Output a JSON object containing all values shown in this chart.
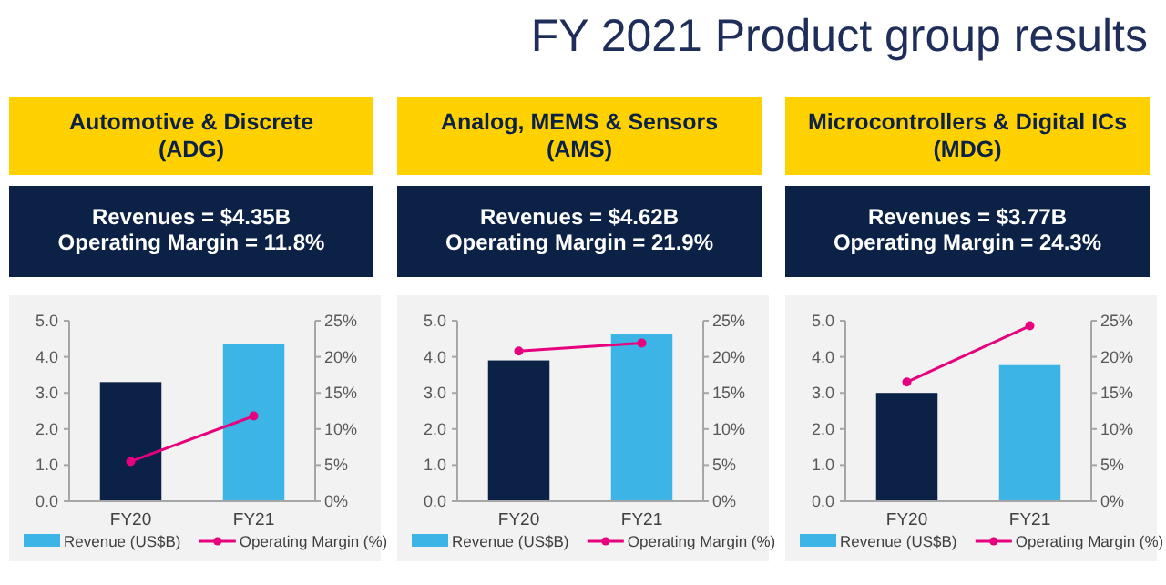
{
  "chart_data": [
    {
      "type": "other",
      "title": "FY 2021 Product group results"
    },
    {
      "type": "bar",
      "title": "Automotive & Discrete\n(ADG)",
      "subtitle": "Revenues = $4.35B\nOperating Margin = 11.8%",
      "categories": [
        "FY20",
        "FY21"
      ],
      "series": [
        {
          "name": "Revenue (US$B)",
          "type": "bar",
          "color": "#3cb4e5",
          "colors": [
            "#0b2146",
            "#3cb4e5"
          ],
          "values": [
            3.3,
            4.35
          ]
        },
        {
          "name": "Operating Margin (%)",
          "type": "line",
          "axis": "y2",
          "color": "#e6007e",
          "values": [
            5.5,
            11.8
          ]
        }
      ],
      "ylim": [
        0,
        5
      ],
      "yticks": [
        {
          "value": 0,
          "label": "0.0"
        },
        {
          "value": 1,
          "label": "1.0"
        },
        {
          "value": 2,
          "label": "2.0"
        },
        {
          "value": 3,
          "label": "3.0"
        },
        {
          "value": 4,
          "label": "4.0"
        },
        {
          "value": 5,
          "label": "5.0"
        }
      ],
      "y2lim": [
        0,
        25
      ],
      "y2ticks": [
        {
          "value": 0,
          "label": "0%"
        },
        {
          "value": 5,
          "label": "5%"
        },
        {
          "value": 10,
          "label": "10%"
        },
        {
          "value": 15,
          "label": "15%"
        },
        {
          "value": 20,
          "label": "20%"
        },
        {
          "value": 25,
          "label": "25%"
        }
      ],
      "legend": "bottom",
      "marker": "circle"
    },
    {
      "type": "bar",
      "title": "Analog, MEMS & Sensors\n(AMS)",
      "subtitle": "Revenues = $4.62B\nOperating Margin = 21.9%",
      "categories": [
        "FY20",
        "FY21"
      ],
      "series": [
        {
          "name": "Revenue (US$B)",
          "type": "bar",
          "color": "#3cb4e5",
          "colors": [
            "#0b2146",
            "#3cb4e5"
          ],
          "values": [
            3.9,
            4.62
          ]
        },
        {
          "name": "Operating Margin (%)",
          "type": "line",
          "axis": "y2",
          "color": "#e6007e",
          "values": [
            20.8,
            21.9
          ]
        }
      ],
      "ylim": [
        0,
        5
      ],
      "yticks": [
        {
          "value": 0,
          "label": "0.0"
        },
        {
          "value": 1,
          "label": "1.0"
        },
        {
          "value": 2,
          "label": "2.0"
        },
        {
          "value": 3,
          "label": "3.0"
        },
        {
          "value": 4,
          "label": "4.0"
        },
        {
          "value": 5,
          "label": "5.0"
        }
      ],
      "y2lim": [
        0,
        25
      ],
      "y2ticks": [
        {
          "value": 0,
          "label": "0%"
        },
        {
          "value": 5,
          "label": "5%"
        },
        {
          "value": 10,
          "label": "10%"
        },
        {
          "value": 15,
          "label": "15%"
        },
        {
          "value": 20,
          "label": "20%"
        },
        {
          "value": 25,
          "label": "25%"
        }
      ],
      "legend": "bottom",
      "marker": "circle"
    },
    {
      "type": "bar",
      "title": "Microcontrollers & Digital ICs\n(MDG)",
      "subtitle": "Revenues = $3.77B\nOperating Margin = 24.3%",
      "categories": [
        "FY20",
        "FY21"
      ],
      "series": [
        {
          "name": "Revenue (US$B)",
          "type": "bar",
          "color": "#3cb4e5",
          "colors": [
            "#0b2146",
            "#3cb4e5"
          ],
          "values": [
            3.0,
            3.77
          ]
        },
        {
          "name": "Operating Margin (%)",
          "type": "line",
          "axis": "y2",
          "color": "#e6007e",
          "values": [
            16.5,
            24.3
          ]
        }
      ],
      "ylim": [
        0,
        5
      ],
      "yticks": [
        {
          "value": 0,
          "label": "0.0"
        },
        {
          "value": 1,
          "label": "1.0"
        },
        {
          "value": 2,
          "label": "2.0"
        },
        {
          "value": 3,
          "label": "3.0"
        },
        {
          "value": 4,
          "label": "4.0"
        },
        {
          "value": 5,
          "label": "5.0"
        }
      ],
      "y2lim": [
        0,
        25
      ],
      "y2ticks": [
        {
          "value": 0,
          "label": "0%"
        },
        {
          "value": 5,
          "label": "5%"
        },
        {
          "value": 10,
          "label": "10%"
        },
        {
          "value": 15,
          "label": "15%"
        },
        {
          "value": 20,
          "label": "20%"
        },
        {
          "value": 25,
          "label": "25%"
        }
      ],
      "legend": "bottom",
      "marker": "circle"
    }
  ]
}
